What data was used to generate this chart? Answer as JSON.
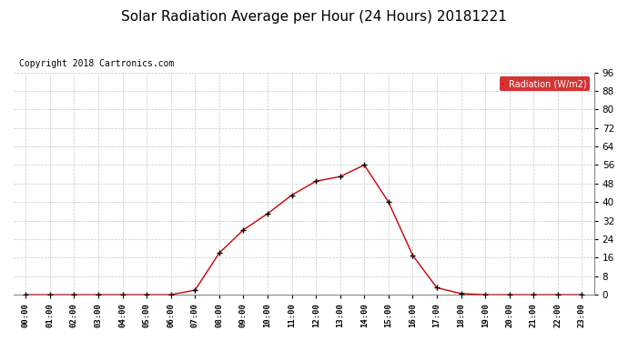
{
  "title": "Solar Radiation Average per Hour (24 Hours) 20181221",
  "copyright": "Copyright 2018 Cartronics.com",
  "legend_label": "Radiation (W/m2)",
  "hours": [
    "00:00",
    "01:00",
    "02:00",
    "03:00",
    "04:00",
    "05:00",
    "06:00",
    "07:00",
    "08:00",
    "09:00",
    "10:00",
    "11:00",
    "12:00",
    "13:00",
    "14:00",
    "15:00",
    "16:00",
    "17:00",
    "18:00",
    "19:00",
    "20:00",
    "21:00",
    "22:00",
    "23:00"
  ],
  "values": [
    0.0,
    0.0,
    0.0,
    0.0,
    0.0,
    0.0,
    0.0,
    2.0,
    18.0,
    28.0,
    35.0,
    43.0,
    49.0,
    51.0,
    56.0,
    40.0,
    17.0,
    3.0,
    0.5,
    0.0,
    0.0,
    0.0,
    0.0,
    0.0
  ],
  "ylim": [
    0,
    96
  ],
  "yticks": [
    0.0,
    8.0,
    16.0,
    24.0,
    32.0,
    40.0,
    48.0,
    56.0,
    64.0,
    72.0,
    80.0,
    88.0,
    96.0
  ],
  "line_color": "#cc0000",
  "marker_color": "#000000",
  "bg_color": "#ffffff",
  "grid_color": "#c8c8c8",
  "title_fontsize": 11,
  "copyright_fontsize": 7,
  "legend_bg": "#cc0000",
  "legend_text_color": "#ffffff"
}
